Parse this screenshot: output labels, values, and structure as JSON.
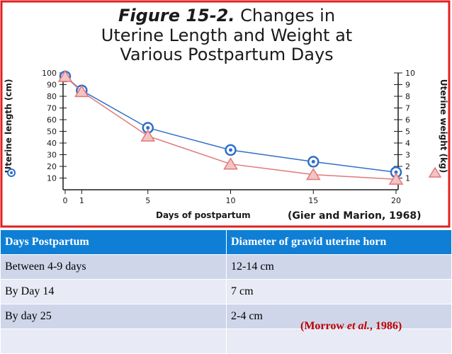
{
  "chart_data": {
    "type": "line",
    "title": {
      "prefix": "Figure 15-2.",
      "line1_rest": " Changes in",
      "line2": "Uterine Length and Weight at",
      "line3": "Various Postpartum Days"
    },
    "xlabel": "Days of postpartum",
    "ylabel_left": "Uterine length (cm)",
    "ylabel_right": "Uterine weight (kg)",
    "x_ticks": [
      "0",
      "1",
      "5",
      "10",
      "15",
      "20"
    ],
    "y_left_ticks": [
      "100",
      "90",
      "80",
      "70",
      "60",
      "50",
      "40",
      "30",
      "20",
      "10"
    ],
    "y_right_ticks": [
      "10",
      "9",
      "8",
      "7",
      "6",
      "5",
      "4",
      "3",
      "2",
      "1"
    ],
    "xlim": [
      0,
      20
    ],
    "ylim_left": [
      0,
      100
    ],
    "ylim_right": [
      0,
      10
    ],
    "grid": false,
    "series": [
      {
        "name": "Uterine length (cm)",
        "axis": "left",
        "marker": "circle",
        "color": "#2f6fc9",
        "x": [
          0,
          1,
          5,
          10,
          15,
          20
        ],
        "values": [
          97,
          85,
          53,
          34,
          24,
          15
        ]
      },
      {
        "name": "Uterine weight (kg)",
        "axis": "right",
        "marker": "triangle",
        "color": "#e0787a",
        "x": [
          0,
          1,
          5,
          10,
          15,
          20
        ],
        "values": [
          9.7,
          8.4,
          4.6,
          2.2,
          1.3,
          0.9
        ]
      }
    ]
  },
  "figure_citation": "(Gier and  Marion, 1968)",
  "table": {
    "headers": [
      "Days Postpartum",
      "Diameter of gravid uterine horn"
    ],
    "rows": [
      [
        "Between 4-9 days",
        "12-14 cm"
      ],
      [
        "By Day 14",
        "7 cm"
      ],
      [
        "By day 25",
        "2-4 cm"
      ],
      [
        "",
        ""
      ]
    ]
  },
  "table_citation": {
    "before": "(Morrow ",
    "italic": "et al.",
    "after": ", 1986)"
  },
  "colors": {
    "frame": "#e02020",
    "header_bg": "#0f7fd6",
    "row_dark": "#cfd6ea",
    "row_light": "#e8ebf5",
    "citation_red": "#c00000"
  }
}
